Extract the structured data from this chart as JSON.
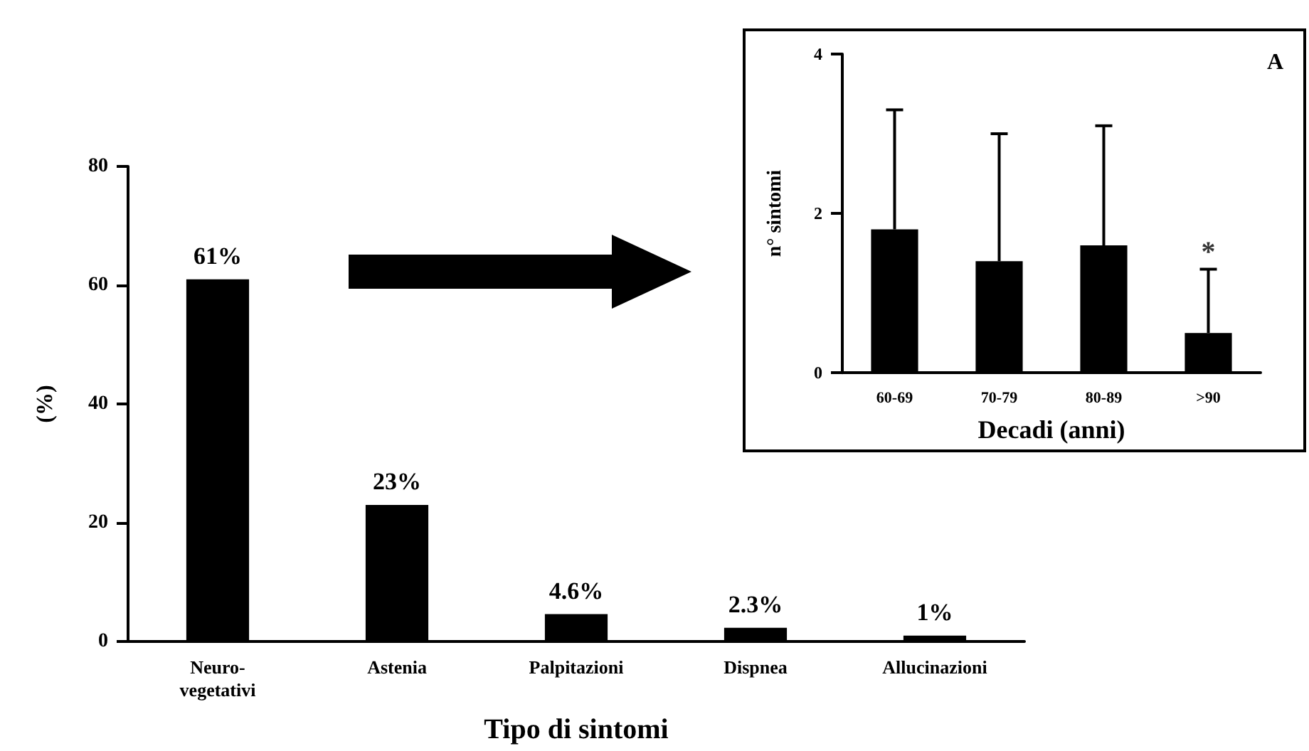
{
  "chart_data": [
    {
      "type": "bar",
      "categories": [
        "Neuro-\nvegetativi",
        "Astenia",
        "Palpitazioni",
        "Dispnea",
        "Allucinazioni"
      ],
      "values": [
        61,
        23,
        4.6,
        2.3,
        1
      ],
      "value_labels": [
        "61%",
        "23%",
        "4.6%",
        "2.3%",
        "1%"
      ],
      "color": "#000000",
      "ylim": [
        0,
        80
      ],
      "yticks": [
        0,
        20,
        40,
        60,
        80
      ],
      "xlabel": "Tipo di sintomi",
      "ylabel": "(%)"
    },
    {
      "type": "bar",
      "categories": [
        "60-69",
        "70-79",
        "80-89",
        ">90"
      ],
      "values": [
        1.8,
        1.4,
        1.6,
        0.5
      ],
      "errors": [
        [
          1.8,
          3.3
        ],
        [
          1.4,
          3.0
        ],
        [
          1.6,
          3.1
        ],
        [
          0.5,
          1.3
        ]
      ],
      "color": "#000000",
      "ylim": [
        0,
        4
      ],
      "yticks": [
        0,
        2,
        4
      ],
      "xlabel": "Decadi (anni)",
      "ylabel": "n° sintomi",
      "annotations": [
        "A",
        {
          "text": "*",
          "x": ">90",
          "y": 1.3
        }
      ]
    }
  ]
}
